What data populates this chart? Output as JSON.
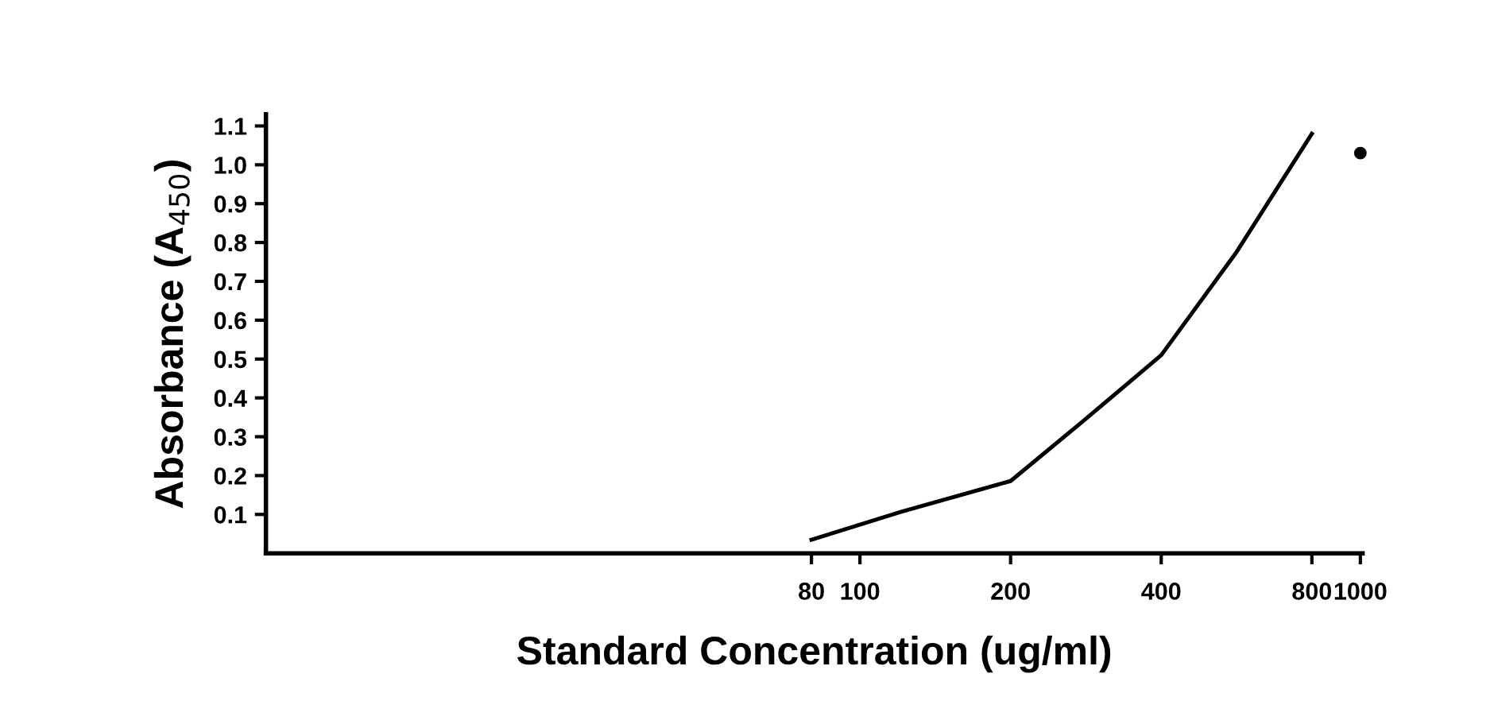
{
  "chart_data": {
    "type": "line",
    "xlabel": "Standard Concentration (ug/ml)",
    "ylabel": "Absorbance (A$_{450}$)",
    "log": "x",
    "line_style": "solid",
    "grid": false,
    "legend": false,
    "series": [
      {
        "color": "#000000",
        "x": [
          80,
          121,
          200,
          278,
          400,
          564,
          800
        ],
        "values": [
          0.035,
          0.107,
          0.186,
          0.338,
          0.51,
          0.773,
          1.08
        ]
      },
      {
        "type": "scatter",
        "color": "#000000",
        "x": [
          1000
        ],
        "values": [
          1.03
        ]
      }
    ],
    "xlim": [
      6.5,
      1010
    ],
    "xticks": [
      80,
      100,
      200,
      400,
      800,
      1000
    ],
    "ylim": [
      0,
      1.13
    ],
    "yticks": [
      0.1,
      0.2,
      0.3,
      0.4,
      0.5,
      0.6,
      0.7,
      0.8,
      0.9,
      {
        "value": 1.0,
        "label": "1.0"
      },
      1.1
    ]
  }
}
